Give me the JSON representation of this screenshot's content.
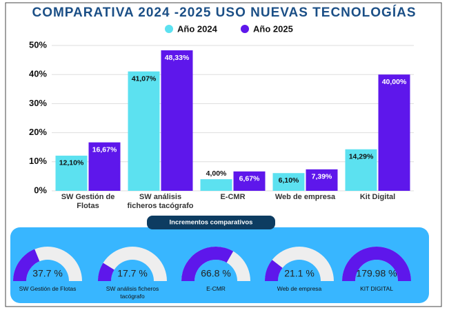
{
  "chart_data": [
    {
      "type": "bar",
      "title": "COMPARATIVA 2024 -2025 USO NUEVAS TECNOLOGÍAS",
      "categories": [
        "SW Gestión de Flotas",
        "SW análisis ficheros tacógrafo",
        "E-CMR",
        "Web de empresa",
        "Kit Digital"
      ],
      "series": [
        {
          "name": "Año 2024",
          "color": "#5ce1f0",
          "values": [
            12.1,
            41.07,
            4.0,
            6.1,
            14.29
          ],
          "value_labels": [
            "12,10%",
            "41,07%",
            "4,00%",
            "6,10%",
            "14,29%"
          ]
        },
        {
          "name": "Año 2025",
          "color": "#5e17eb",
          "values": [
            16.67,
            48.33,
            6.67,
            7.39,
            40.0
          ],
          "value_labels": [
            "16,67%",
            "48,33%",
            "6,67%",
            "7,39%",
            "40,00%"
          ]
        }
      ],
      "ylim": [
        0,
        50
      ],
      "yticks": [
        {
          "value": 0,
          "label": "0%"
        },
        {
          "value": 10,
          "label": "10%"
        },
        {
          "value": 20,
          "label": "20%"
        },
        {
          "value": 30,
          "label": "30%"
        },
        {
          "value": 40,
          "label": "40%"
        },
        {
          "value": 50,
          "label": "50%"
        }
      ],
      "grid": true
    },
    {
      "type": "gauge",
      "title": "Incrementos comparativos",
      "categories": [
        "SW Gestión de Flotas",
        "SW análisis ficheros tacógrafo",
        "E-CMR",
        "Web de empresa",
        "KIT DIGITAL"
      ],
      "values": [
        37.7,
        17.7,
        66.8,
        21.1,
        179.98
      ],
      "value_labels": [
        "37.7 %",
        "17.7 %",
        "66.8 %",
        "21.1 %",
        "179.98 %"
      ],
      "color": "#5e17eb",
      "ylim": [
        0,
        100
      ]
    }
  ]
}
